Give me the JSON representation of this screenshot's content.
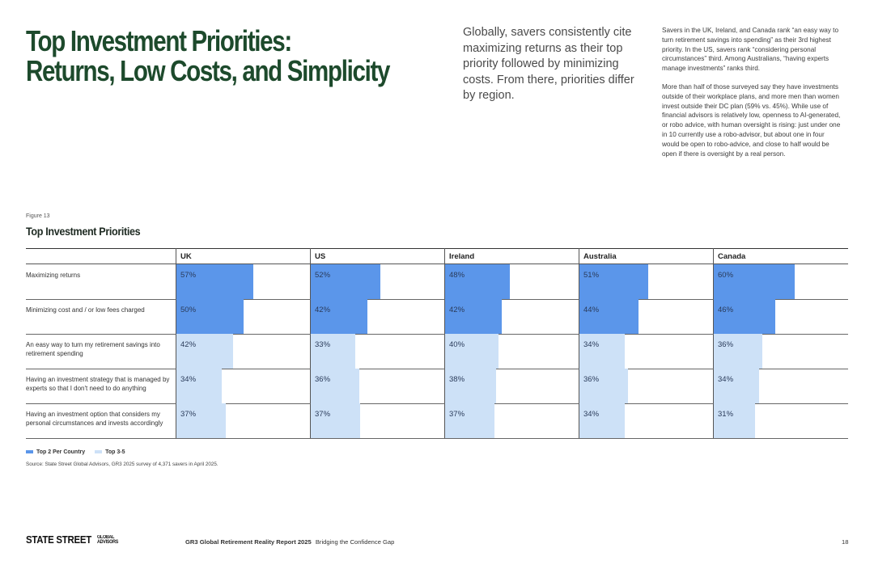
{
  "header": {
    "title_line1": "Top Investment Priorities:",
    "title_line2": "Returns, Low Costs, and Simplicity",
    "intro": "Globally, savers consistently cite maximizing returns as their top priority followed by minimizing costs. From there, priorities differ by region.",
    "side_p1": "Savers in the UK, Ireland, and Canada rank “an easy way to turn retirement savings into spending” as their 3rd highest priority. In the US, savers rank “considering personal circumstances” third. Among Australians, “having experts manage investments” ranks third.",
    "side_p2": "More than half of those surveyed say they have investments outside of their workplace plans, and more men than women invest outside their DC plan (59% vs. 45%). While use of financial advisors is relatively low, openness to AI-generated, or robo advice, with human oversight is rising: just under one in 10 currently use a robo-advisor, but about one in four would be open to robo-advice, and close to half would be open if there is oversight by a real person."
  },
  "figure": {
    "label": "Figure 13",
    "title": "Top Investment Priorities"
  },
  "chart_data": {
    "type": "table",
    "title": "Top Investment Priorities",
    "columns": [
      "UK",
      "US",
      "Ireland",
      "Australia",
      "Canada"
    ],
    "rows": [
      {
        "label": "Maximizing returns",
        "values": [
          57,
          52,
          48,
          51,
          60
        ],
        "top2": [
          true,
          true,
          true,
          true,
          true
        ]
      },
      {
        "label": "Minimizing cost and / or low fees charged",
        "values": [
          50,
          42,
          42,
          44,
          46
        ],
        "top2": [
          true,
          true,
          true,
          true,
          true
        ]
      },
      {
        "label": "An easy way to turn my retirement savings into retirement spending",
        "values": [
          42,
          33,
          40,
          34,
          36
        ],
        "top2": [
          false,
          false,
          false,
          false,
          false
        ]
      },
      {
        "label": "Having an investment strategy that is managed by experts so that I don't need to do anything",
        "values": [
          34,
          36,
          38,
          36,
          34
        ],
        "top2": [
          false,
          false,
          false,
          false,
          false
        ]
      },
      {
        "label": "Having an investment option that considers my personal circumstances and invests accordingly",
        "values": [
          37,
          37,
          37,
          34,
          31
        ],
        "top2": [
          false,
          false,
          false,
          false,
          false
        ]
      }
    ],
    "value_suffix": "%",
    "legend": [
      {
        "label": "Top 2 Per Country",
        "color": "#5b96ea"
      },
      {
        "label": "Top 3-5",
        "color": "#cde1f7"
      }
    ]
  },
  "source": "Source: State Street Global Advisors, GR3 2025 survey of 4,371 savers in April 2025.",
  "footer": {
    "logo_main": "STATE STREET",
    "logo_sub1": "GLOBAL",
    "logo_sub2": "ADVISORS",
    "report_title": "GR3 Global Retirement Reality Report 2025",
    "report_subtitle": "Bridging the Confidence Gap",
    "page_number": "18"
  }
}
